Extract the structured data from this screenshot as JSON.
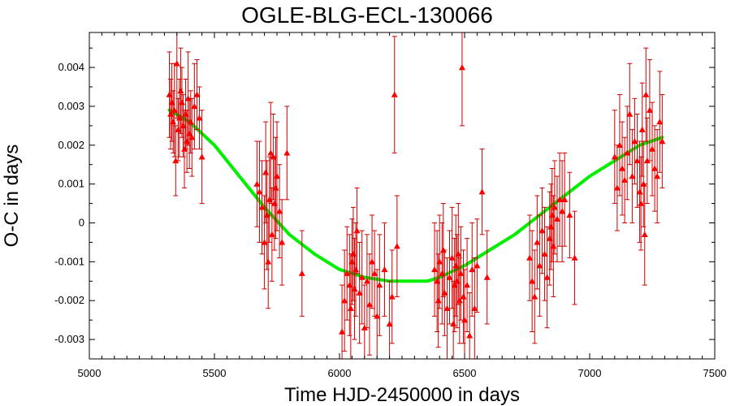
{
  "chart_data": {
    "type": "scatter",
    "title": "OGLE-BLG-ECL-130066",
    "xlabel": "Time HJD-2450000 in days",
    "ylabel": "O-C in days",
    "xlim": [
      5000,
      7500
    ],
    "ylim": [
      -0.0035,
      0.0049
    ],
    "x_ticks": [
      5000,
      5500,
      6000,
      6500,
      7000,
      7500
    ],
    "y_ticks": [
      -0.003,
      -0.002,
      -0.001,
      0,
      0.001,
      0.002,
      0.003,
      0.004
    ],
    "y_tick_labels": [
      "-0.003",
      "-0.002",
      "-0.001",
      "0",
      "0.001",
      "0.002",
      "0.003",
      "0.004"
    ],
    "grid": false,
    "colors": {
      "points": "#ff0000",
      "errorbars": "#cc0000",
      "fit": "#00ee00"
    },
    "series": [
      {
        "kind": "observations",
        "x": [
          5320,
          5325,
          5330,
          5335,
          5340,
          5345,
          5350,
          5355,
          5360,
          5365,
          5370,
          5375,
          5380,
          5385,
          5390,
          5395,
          5400,
          5405,
          5410,
          5420,
          5430,
          5440,
          5450,
          5670,
          5680,
          5690,
          5700,
          5705,
          5710,
          5715,
          5720,
          5725,
          5730,
          5735,
          5740,
          5745,
          5750,
          5760,
          5770,
          5790,
          5850,
          6010,
          6020,
          6030,
          6040,
          6045,
          6050,
          6055,
          6060,
          6065,
          6070,
          6080,
          6090,
          6100,
          6110,
          6120,
          6130,
          6140,
          6150,
          6160,
          6180,
          6200,
          6210,
          6220,
          6230,
          6380,
          6390,
          6395,
          6400,
          6410,
          6415,
          6420,
          6430,
          6440,
          6450,
          6455,
          6460,
          6465,
          6470,
          6475,
          6480,
          6485,
          6490,
          6495,
          6500,
          6510,
          6520,
          6530,
          6540,
          6550,
          6570,
          6590,
          6760,
          6770,
          6780,
          6790,
          6800,
          6810,
          6820,
          6830,
          6840,
          6845,
          6850,
          6855,
          6860,
          6870,
          6880,
          6890,
          6900,
          6920,
          6940,
          7100,
          7110,
          7120,
          7130,
          7140,
          7150,
          7160,
          7170,
          7180,
          7190,
          7200,
          7205,
          7210,
          7215,
          7220,
          7225,
          7230,
          7240,
          7250,
          7260,
          7270,
          7280,
          7290
        ],
        "y": [
          0.0033,
          0.0028,
          0.0031,
          0.0026,
          0.0029,
          0.0016,
          0.0041,
          0.0024,
          0.0027,
          0.0034,
          0.0031,
          0.0025,
          0.0019,
          0.0028,
          0.0021,
          0.0032,
          0.0023,
          0.0026,
          0.0022,
          0.003,
          0.0033,
          0.0027,
          0.0017,
          0.001,
          0.0008,
          0.0004,
          -0.0005,
          0.0013,
          0.0002,
          -0.001,
          0.0006,
          0.0018,
          -0.0003,
          0.0017,
          0.0005,
          0.0009,
          0.0012,
          0.0003,
          -0.0005,
          0.0018,
          -0.0013,
          -0.0028,
          -0.002,
          -0.0013,
          -0.0016,
          -0.0022,
          -0.001,
          -0.0008,
          -0.0017,
          -0.0012,
          -0.0002,
          -0.0018,
          -0.0014,
          -0.0027,
          -0.0015,
          -0.0021,
          -0.001,
          -0.0013,
          -0.0024,
          -0.0016,
          -0.0012,
          -0.0026,
          -0.0019,
          0.0033,
          -0.0006,
          -0.0012,
          -0.0015,
          -0.002,
          -0.001,
          -0.0013,
          -0.0007,
          -0.0018,
          -0.0022,
          -0.0014,
          -0.0009,
          -0.0026,
          -0.0016,
          -0.0011,
          -0.0015,
          -0.0008,
          -0.002,
          -0.0013,
          0.004,
          -0.0019,
          -0.0025,
          -0.0016,
          -0.0029,
          -0.0012,
          -0.0022,
          -0.0011,
          0.0008,
          -0.0014,
          -0.0009,
          -0.0015,
          -0.0019,
          -0.0005,
          -0.0011,
          -0.0002,
          -0.0008,
          -0.0014,
          -0.0004,
          -0.0001,
          0.0002,
          -0.0006,
          0.0004,
          0.0001,
          0.0006,
          0.0003,
          0.0006,
          0.0002,
          -0.0009,
          0.0017,
          0.0009,
          0.002,
          0.0014,
          0.0011,
          0.0018,
          0.0028,
          0.0012,
          0.0021,
          0.0016,
          0.0008,
          0.0005,
          0.0024,
          0.001,
          -0.0003,
          0.0033,
          0.0016,
          0.0029,
          0.0019,
          0.0014,
          0.0012,
          0.0026,
          0.0021
        ],
        "yerr": [
          0.0011,
          0.0009,
          0.001,
          0.0008,
          0.0012,
          0.0009,
          0.0014,
          0.0008,
          0.001,
          0.0011,
          0.0009,
          0.0008,
          0.001,
          0.0009,
          0.0008,
          0.0012,
          0.0009,
          0.0008,
          0.001,
          0.0011,
          0.0009,
          0.0008,
          0.0012,
          0.0011,
          0.0013,
          0.0012,
          0.0012,
          0.0013,
          0.0014,
          0.0012,
          0.0011,
          0.0013,
          0.0012,
          0.0011,
          0.0012,
          0.0013,
          0.0014,
          0.0012,
          0.0011,
          0.0012,
          0.0011,
          0.0012,
          0.0013,
          0.0012,
          0.0013,
          0.0014,
          0.0011,
          0.0012,
          0.0013,
          0.0012,
          0.0011,
          0.0013,
          0.0012,
          0.0011,
          0.0012,
          0.0013,
          0.0012,
          0.0011,
          0.0012,
          0.0013,
          0.0012,
          0.0011,
          0.0012,
          0.0015,
          0.0013,
          0.0012,
          0.0013,
          0.0012,
          0.0012,
          0.0013,
          0.0012,
          0.0011,
          0.0013,
          0.0012,
          0.0013,
          0.0011,
          0.0012,
          0.0013,
          0.0012,
          0.0013,
          0.0011,
          0.0012,
          0.0015,
          0.0012,
          0.0013,
          0.0012,
          0.0011,
          0.0012,
          0.0013,
          0.0012,
          0.0011,
          0.0012,
          0.0011,
          0.0013,
          0.0012,
          0.0012,
          0.0013,
          0.0011,
          0.0012,
          0.0013,
          0.0012,
          0.0011,
          0.0012,
          0.0013,
          0.0012,
          0.0011,
          0.0012,
          0.0013,
          0.0012,
          0.0011,
          0.0012,
          0.0012,
          0.0011,
          0.0013,
          0.0012,
          0.0011,
          0.0012,
          0.0013,
          0.0012,
          0.0011,
          0.0012,
          0.0013,
          0.0012,
          0.0012,
          0.0011,
          0.0013,
          0.0012,
          0.0011,
          0.0013,
          0.0012,
          0.0011,
          0.0012,
          0.0013,
          0.0012
        ]
      },
      {
        "kind": "fit",
        "x": [
          5320,
          5400,
          5500,
          5600,
          5700,
          5800,
          5900,
          6000,
          6100,
          6200,
          6300,
          6350,
          6400,
          6500,
          6600,
          6700,
          6800,
          6900,
          7000,
          7100,
          7200,
          7290
        ],
        "y": [
          0.0029,
          0.0026,
          0.002,
          0.0012,
          0.0004,
          -0.0003,
          -0.0008,
          -0.0012,
          -0.0014,
          -0.0015,
          -0.0015,
          -0.0015,
          -0.0014,
          -0.0011,
          -0.0007,
          -0.0003,
          0.0002,
          0.0007,
          0.0012,
          0.0016,
          0.002,
          0.0022
        ]
      }
    ]
  }
}
